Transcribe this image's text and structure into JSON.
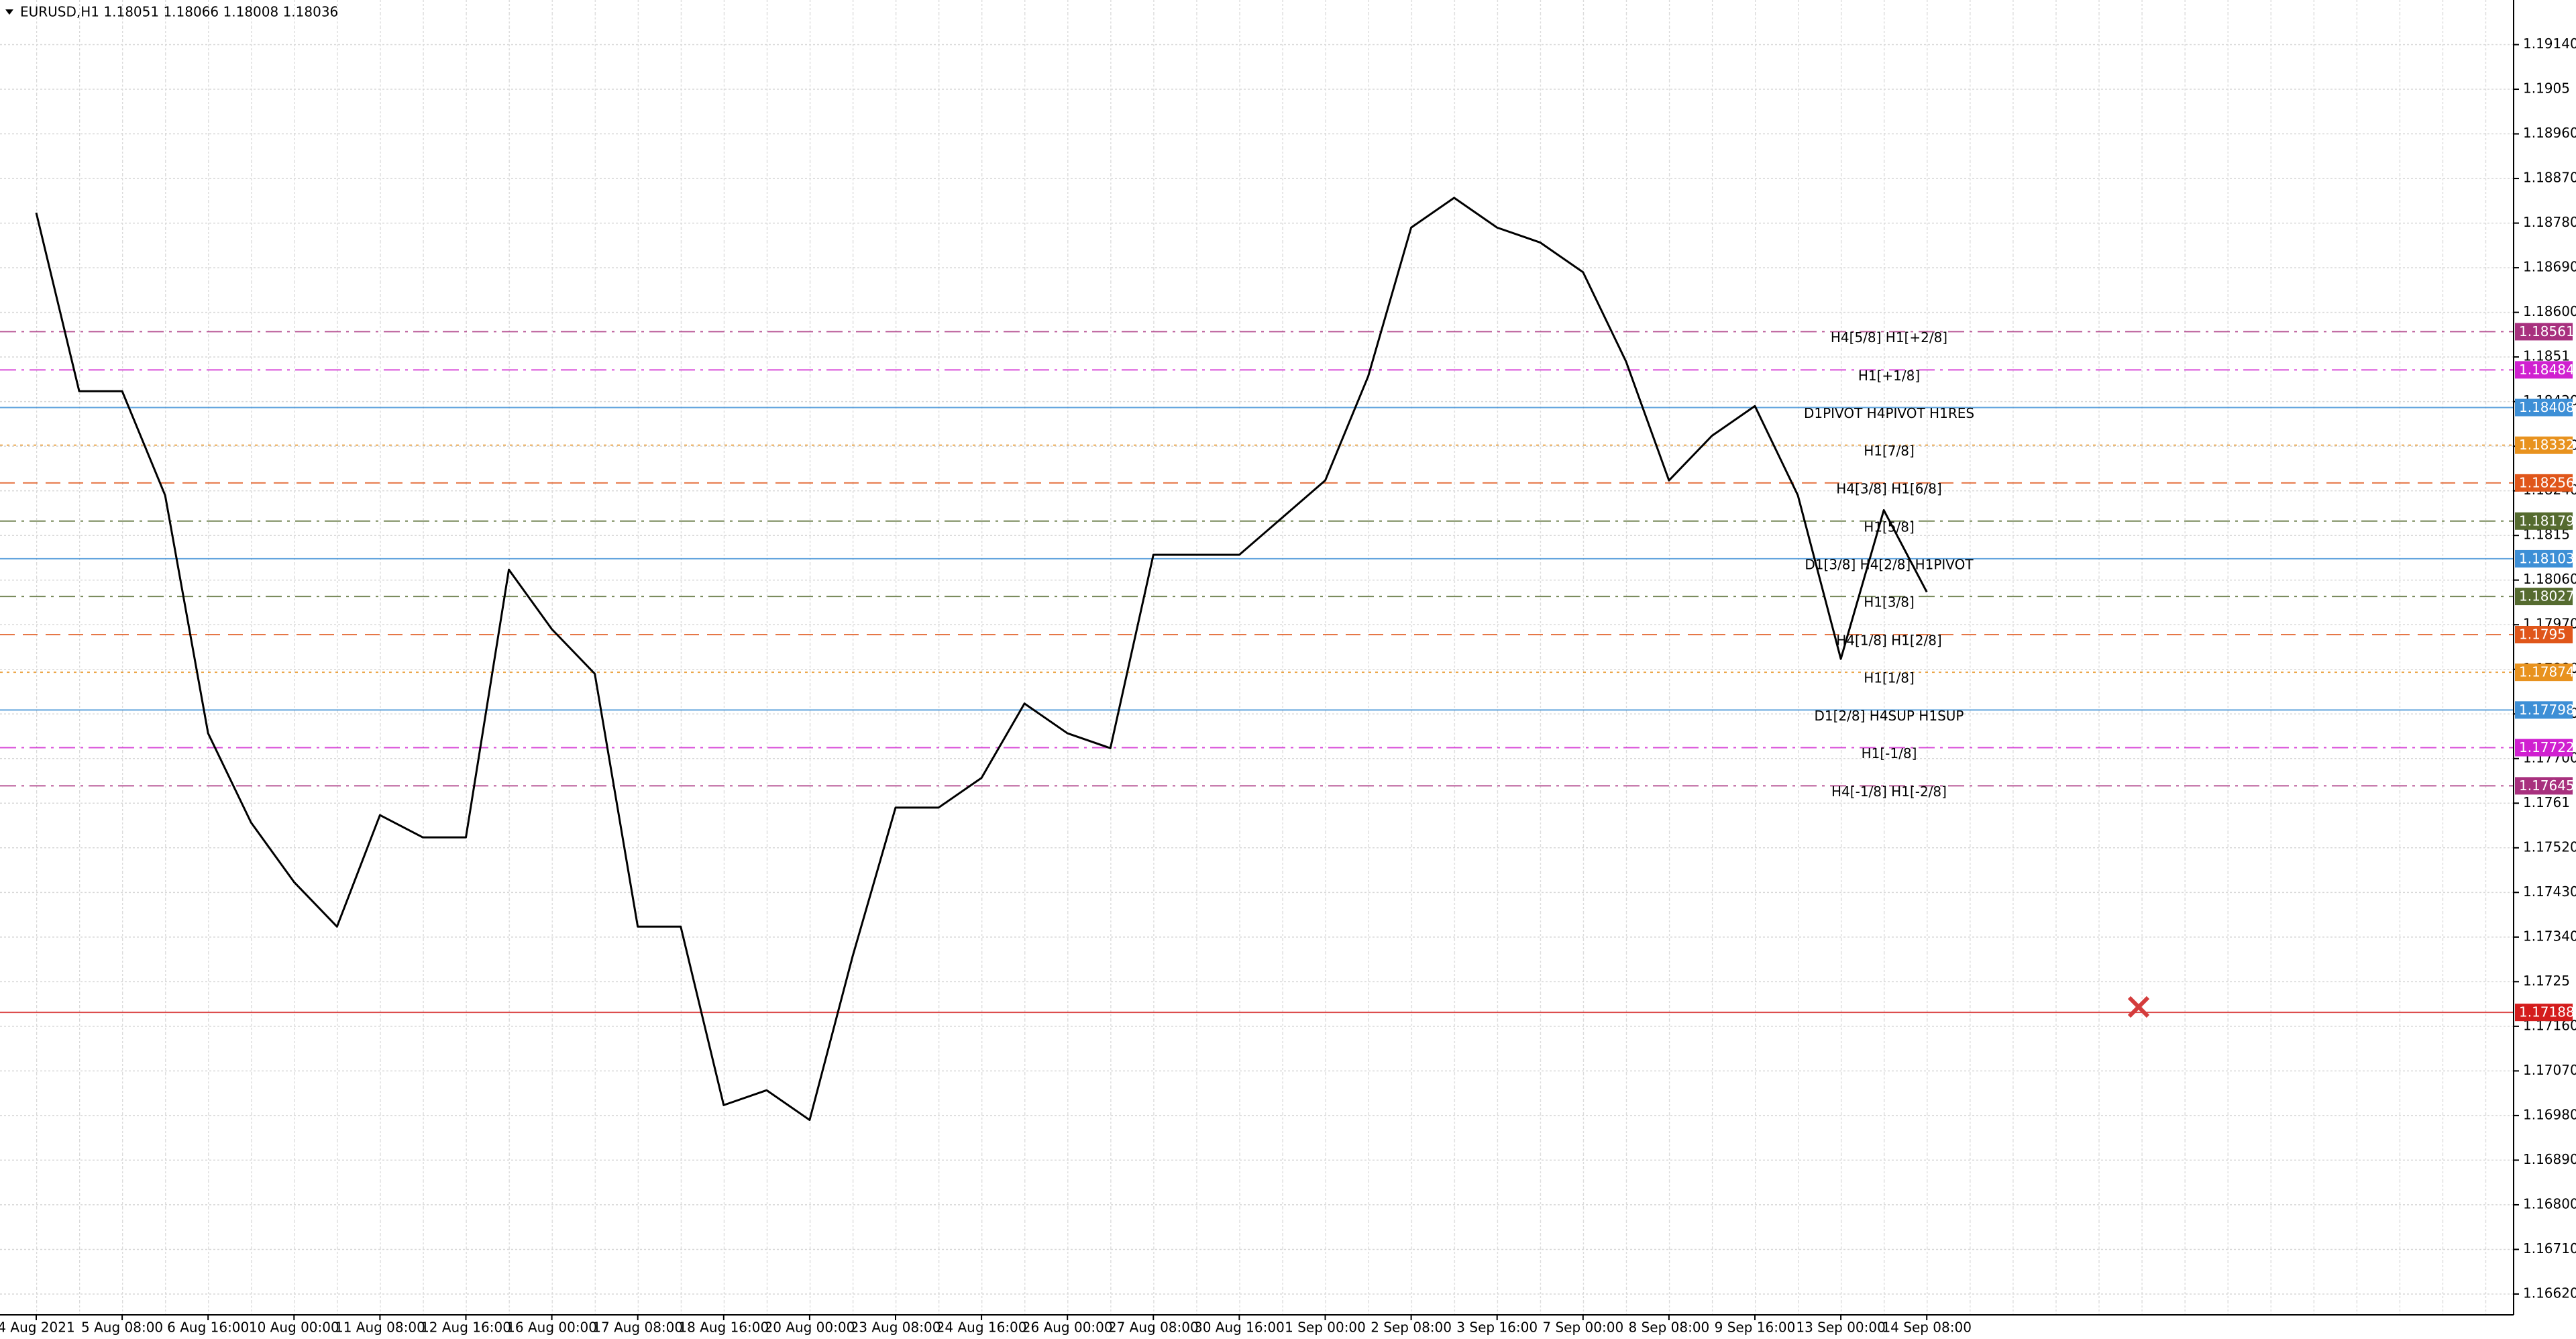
{
  "chart_data": {
    "type": "line",
    "title": "EURUSD,H1  1.18051 1.18066 1.18008 1.18036",
    "categories": [
      "4 Aug 2021",
      null,
      "5 Aug 08:00",
      null,
      "6 Aug 16:00",
      null,
      "10 Aug 00:00",
      null,
      "11 Aug 08:00",
      null,
      "12 Aug 16:00",
      null,
      "16 Aug 00:00",
      null,
      "17 Aug 08:00",
      null,
      "18 Aug 16:00",
      null,
      "20 Aug 00:00",
      null,
      "23 Aug 08:00",
      null,
      "24 Aug 16:00",
      null,
      "26 Aug 00:00",
      null,
      "27 Aug 08:00",
      null,
      "30 Aug 16:00",
      null,
      "1 Sep 00:00",
      null,
      "2 Sep 08:00",
      null,
      "3 Sep 16:00",
      null,
      "7 Sep 00:00",
      null,
      "8 Sep 08:00",
      null,
      "9 Sep 16:00",
      null,
      "13 Sep 00:00",
      null,
      "14 Sep 08:00",
      null,
      null,
      null,
      null,
      null,
      null,
      null,
      null,
      null,
      null,
      null,
      null,
      null
    ],
    "series": [
      {
        "name": "EURUSD",
        "color": "#000000",
        "values": [
          1.18801,
          1.18441,
          1.18441,
          1.18231,
          1.17751,
          1.17571,
          1.17451,
          1.17361,
          1.17586,
          1.17541,
          1.17541,
          1.18081,
          1.17961,
          1.17871,
          1.17361,
          1.17361,
          1.17001,
          1.17031,
          1.16971,
          1.17301,
          1.17601,
          1.17601,
          1.17661,
          1.17811,
          1.17751,
          1.17721,
          1.18111,
          1.18111,
          1.18111,
          1.18186,
          1.18261,
          1.18471,
          1.18771,
          1.18831,
          1.18771,
          1.18741,
          1.18681,
          1.18501,
          1.18261,
          1.18351,
          1.18411,
          1.18231,
          1.17901,
          1.18201,
          1.18036,
          null,
          null,
          null,
          null,
          null,
          null,
          null,
          null,
          null,
          null,
          null,
          null,
          null
        ]
      }
    ],
    "ylim": [
      1.16578,
      1.1923
    ],
    "yticks": [
      {
        "value": 1.1914,
        "label": "1.19140"
      },
      1.1905,
      {
        "value": 1.1896,
        "label": "1.18960"
      },
      {
        "value": 1.1887,
        "label": "1.18870"
      },
      {
        "value": 1.1878,
        "label": "1.18780"
      },
      {
        "value": 1.1869,
        "label": "1.18690"
      },
      {
        "value": 1.186,
        "label": "1.18600"
      },
      1.1851,
      {
        "value": 1.1842,
        "label": "1.18420"
      },
      {
        "value": 1.1833,
        "label": "1.18330"
      },
      {
        "value": 1.1824,
        "label": "1.18240"
      },
      1.1815,
      {
        "value": 1.1806,
        "label": "1.18060"
      },
      {
        "value": 1.1797,
        "label": "1.17970"
      },
      {
        "value": 1.1788,
        "label": "1.17880"
      },
      {
        "value": 1.1779,
        "label": "1.17790"
      },
      {
        "value": 1.177,
        "label": "1.17700"
      },
      1.1761,
      {
        "value": 1.1752,
        "label": "1.17520"
      },
      {
        "value": 1.1743,
        "label": "1.17430"
      },
      {
        "value": 1.1734,
        "label": "1.17340"
      },
      1.1725,
      {
        "value": 1.1716,
        "label": "1.17160"
      },
      {
        "value": 1.1707,
        "label": "1.17070"
      },
      {
        "value": 1.1698,
        "label": "1.16980"
      },
      {
        "value": 1.1689,
        "label": "1.16890"
      },
      {
        "value": 1.168,
        "label": "1.16800"
      },
      {
        "value": 1.1671,
        "label": "1.16710"
      },
      {
        "value": 1.1662,
        "label": "1.16620"
      }
    ],
    "grid": true,
    "levels": [
      {
        "label": "H4[5/8] H1[+2/8]",
        "value": 1.18561,
        "color": "#a8307e",
        "dash": "dashdot"
      },
      {
        "label": "H1[+1/8]",
        "value": 1.18484,
        "color": "#d020d0",
        "dash": "dashdot"
      },
      {
        "label": "D1PIVOT H4PIVOT H1RES",
        "value": 1.18408,
        "color": "#3d8fd6",
        "dash": "solid"
      },
      {
        "label": "H1[7/8]",
        "value": 1.18332,
        "color": "#e8921e",
        "dash": "dotted"
      },
      {
        "label": "H4[3/8] H1[6/8]",
        "value": 1.18256,
        "color": "#e0561a",
        "dash": "dashed"
      },
      {
        "label": "H1[5/8]",
        "value": 1.18179,
        "color": "#556b2f",
        "dash": "dashdot"
      },
      {
        "label": "D1[3/8] H4[2/8] H1PIVOT",
        "value": 1.18103,
        "color": "#3d8fd6",
        "dash": "solid"
      },
      {
        "label": "H1[3/8]",
        "value": 1.18027,
        "color": "#556b2f",
        "dash": "dashdot"
      },
      {
        "label": "H4[1/8] H1[2/8]",
        "value": 1.1795,
        "color": "#e0561a",
        "dash": "dashed"
      },
      {
        "label": "H1[1/8]",
        "value": 1.17874,
        "color": "#e8921e",
        "dash": "dotted"
      },
      {
        "label": "D1[2/8] H4SUP H1SUP",
        "value": 1.17798,
        "color": "#3d8fd6",
        "dash": "solid"
      },
      {
        "label": "H1[-1/8]",
        "value": 1.17722,
        "color": "#d020d0",
        "dash": "dashdot"
      },
      {
        "label": "H4[-1/8] H1[-2/8]",
        "value": 1.17645,
        "color": "#a8307e",
        "dash": "dashdot"
      },
      {
        "label": null,
        "value": 1.17188,
        "color": "#d41c1c",
        "dash": "solid"
      }
    ]
  }
}
